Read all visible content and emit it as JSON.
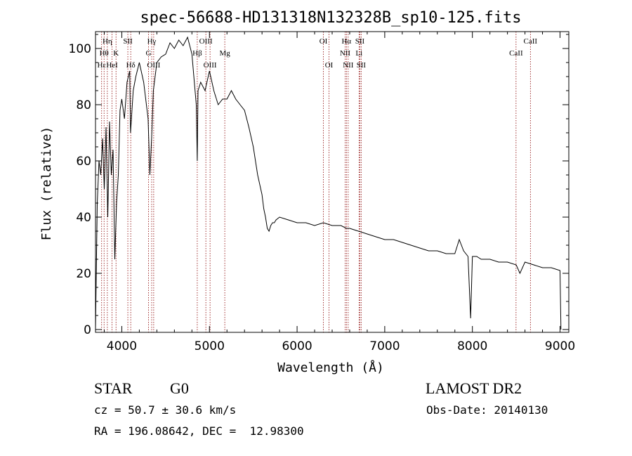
{
  "chart_data": {
    "type": "line",
    "title": "spec-56688-HD131318N132328B_sp10-125.fits",
    "xlabel": "Wavelength (Å)",
    "ylabel": "Flux (relative)",
    "xlim": [
      3700,
      9100
    ],
    "ylim": [
      -1,
      106
    ],
    "x_ticks": [
      4000,
      5000,
      6000,
      7000,
      8000,
      9000
    ],
    "y_ticks": [
      0,
      20,
      40,
      60,
      80,
      100
    ],
    "grid": false,
    "series": [
      {
        "x": [
          3700,
          3720,
          3740,
          3760,
          3780,
          3800,
          3820,
          3840,
          3860,
          3880,
          3900,
          3920,
          3940,
          3960,
          3980,
          4000,
          4030,
          4060,
          4090,
          4100,
          4130,
          4160,
          4200,
          4250,
          4300,
          4320,
          4340,
          4360,
          4380,
          4400,
          4450,
          4500,
          4550,
          4600,
          4650,
          4700,
          4750,
          4800,
          4850,
          4861,
          4870,
          4900,
          4950,
          5000,
          5050,
          5100,
          5150,
          5200,
          5250,
          5300,
          5350,
          5400,
          5450,
          5500,
          5550,
          5600,
          5620,
          5640,
          5660,
          5680,
          5700,
          5720,
          5740,
          5760,
          5800,
          5900,
          6000,
          6100,
          6200,
          6300,
          6400,
          6500,
          6563,
          6600,
          6700,
          6800,
          6900,
          7000,
          7100,
          7200,
          7300,
          7400,
          7500,
          7600,
          7700,
          7800,
          7850,
          7900,
          7950,
          7980,
          8000,
          8050,
          8100,
          8200,
          8300,
          8400,
          8500,
          8542,
          8600,
          8700,
          8800,
          8900,
          9000,
          9010
        ],
        "y": [
          0,
          45,
          60,
          55,
          68,
          50,
          72,
          40,
          74,
          55,
          64,
          25,
          45,
          55,
          78,
          82,
          75,
          88,
          92,
          70,
          85,
          90,
          95,
          88,
          75,
          55,
          68,
          85,
          90,
          95,
          97,
          98,
          102,
          100,
          103,
          101,
          104,
          98,
          80,
          60,
          85,
          88,
          85,
          92,
          85,
          80,
          82,
          82,
          85,
          82,
          80,
          78,
          72,
          65,
          55,
          48,
          43,
          40,
          36,
          35,
          37,
          38,
          38,
          39,
          40,
          39,
          38,
          38,
          37,
          38,
          37,
          37,
          36,
          36,
          35,
          34,
          33,
          32,
          32,
          31,
          30,
          29,
          28,
          28,
          27,
          27,
          32,
          28,
          26,
          4,
          26,
          26,
          25,
          25,
          24,
          24,
          23,
          20,
          24,
          23,
          22,
          22,
          21,
          0
        ]
      }
    ],
    "line_markers": [
      {
        "label": "Hη",
        "x": 3835,
        "row": 1
      },
      {
        "label": "Hθ",
        "x": 3798,
        "row": 2
      },
      {
        "label": "Hε",
        "x": 3770,
        "row": 3
      },
      {
        "label": "HeI",
        "x": 3889,
        "row": 3
      },
      {
        "label": "K",
        "x": 3934,
        "row": 2
      },
      {
        "label": "SII",
        "x": 4069,
        "row": 1
      },
      {
        "label": "Hδ",
        "x": 4102,
        "row": 3
      },
      {
        "label": "Hγ",
        "x": 4341,
        "row": 1
      },
      {
        "label": "G",
        "x": 4305,
        "row": 2
      },
      {
        "label": "OIII",
        "x": 4364,
        "row": 3
      },
      {
        "label": "OIII",
        "x": 4959,
        "row": 1
      },
      {
        "label": "Hβ",
        "x": 4861,
        "row": 2
      },
      {
        "label": "OIII",
        "x": 5007,
        "row": 3
      },
      {
        "label": "Mg",
        "x": 5175,
        "row": 2
      },
      {
        "label": "OI",
        "x": 6300,
        "row": 1
      },
      {
        "label": "OI",
        "x": 6364,
        "row": 3
      },
      {
        "label": "Hα",
        "x": 6563,
        "row": 1
      },
      {
        "label": "NII",
        "x": 6548,
        "row": 2
      },
      {
        "label": "NII",
        "x": 6583,
        "row": 3
      },
      {
        "label": "SII",
        "x": 6716,
        "row": 1
      },
      {
        "label": "Li",
        "x": 6707,
        "row": 2
      },
      {
        "label": "SII",
        "x": 6731,
        "row": 3
      },
      {
        "label": "CaII",
        "x": 8662,
        "row": 1
      },
      {
        "label": "CaII",
        "x": 8498,
        "row": 2
      }
    ]
  },
  "info": {
    "object_class": "STAR",
    "subclass": "G0",
    "survey": "LAMOST DR2",
    "redshift_line": "cz = 50.7 ± 30.6 km/s",
    "obs_date": "Obs-Date: 20140130",
    "coords": "RA = 196.08642, DEC =  12.98300"
  },
  "colors": {
    "spectrum": "#000000",
    "marker_line": "#8b0000",
    "axes": "#000000"
  }
}
